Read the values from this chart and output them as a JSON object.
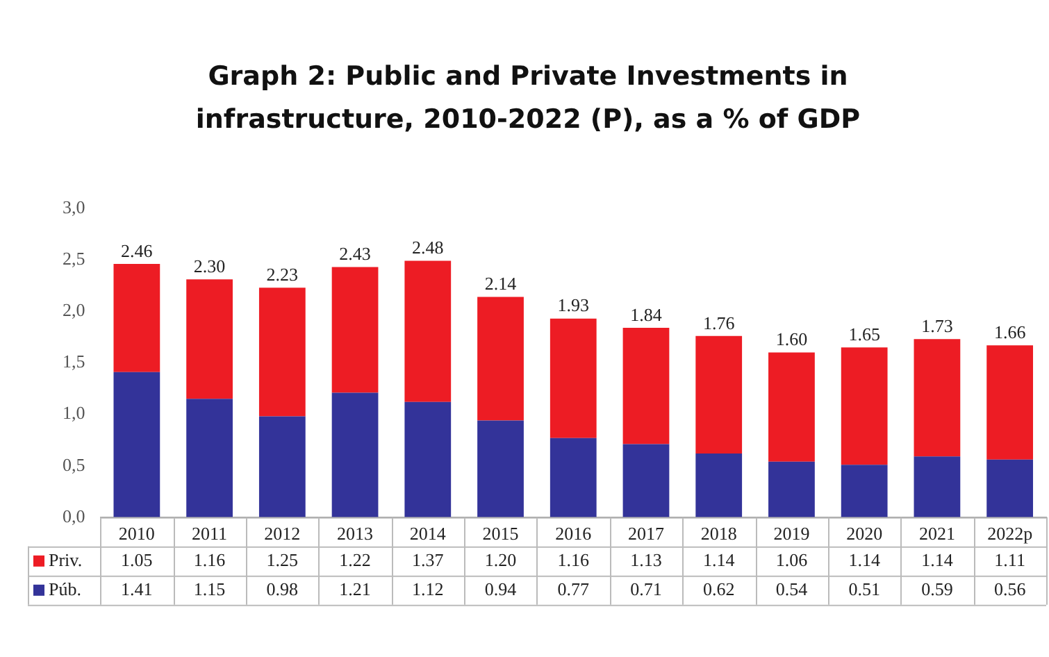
{
  "chart_data": {
    "type": "bar",
    "title": "Graph 2: Public and Private Investments in infrastructure, 2010-2022 (P), as a % of GDP",
    "categories": [
      "2010",
      "2011",
      "2012",
      "2013",
      "2014",
      "2015",
      "2016",
      "2017",
      "2018",
      "2019",
      "2020",
      "2021",
      "2022p"
    ],
    "stacked": true,
    "series": [
      {
        "name": "Púb.",
        "color": "#333399",
        "values": [
          1.41,
          1.15,
          0.98,
          1.21,
          1.12,
          0.94,
          0.77,
          0.71,
          0.62,
          0.54,
          0.51,
          0.59,
          0.56
        ],
        "value_labels": [
          "1.41",
          "1.15",
          "0.98",
          "1.21",
          "1.12",
          "0.94",
          "0.77",
          "0.71",
          "0.62",
          "0.54",
          "0.51",
          "0.59",
          "0.56"
        ]
      },
      {
        "name": "Priv.",
        "color": "#ed1c24",
        "values": [
          1.05,
          1.16,
          1.25,
          1.22,
          1.37,
          1.2,
          1.16,
          1.13,
          1.14,
          1.06,
          1.14,
          1.14,
          1.11
        ],
        "value_labels": [
          "1.05",
          "1.16",
          "1.25",
          "1.22",
          "1.37",
          "1.20",
          "1.16",
          "1.13",
          "1.14",
          "1.06",
          "1.14",
          "1.14",
          "1.11"
        ]
      }
    ],
    "totals": [
      "2.46",
      "2.30",
      "2.23",
      "2.43",
      "2.48",
      "2.14",
      "1.93",
      "1.84",
      "1.76",
      "1.60",
      "1.65",
      "1.73",
      "1.66"
    ],
    "ylim": [
      0,
      3
    ],
    "yticks": [
      {
        "value": 0,
        "label": "0,0"
      },
      {
        "value": 0.5,
        "label": "0,5"
      },
      {
        "value": 1,
        "label": "1,0"
      },
      {
        "value": 1.5,
        "label": "1,5"
      },
      {
        "value": 2,
        "label": "2,0"
      },
      {
        "value": 2.5,
        "label": "2,5"
      },
      {
        "value": 3,
        "label": "3,0"
      }
    ],
    "grid": false,
    "legend": "bottom"
  }
}
